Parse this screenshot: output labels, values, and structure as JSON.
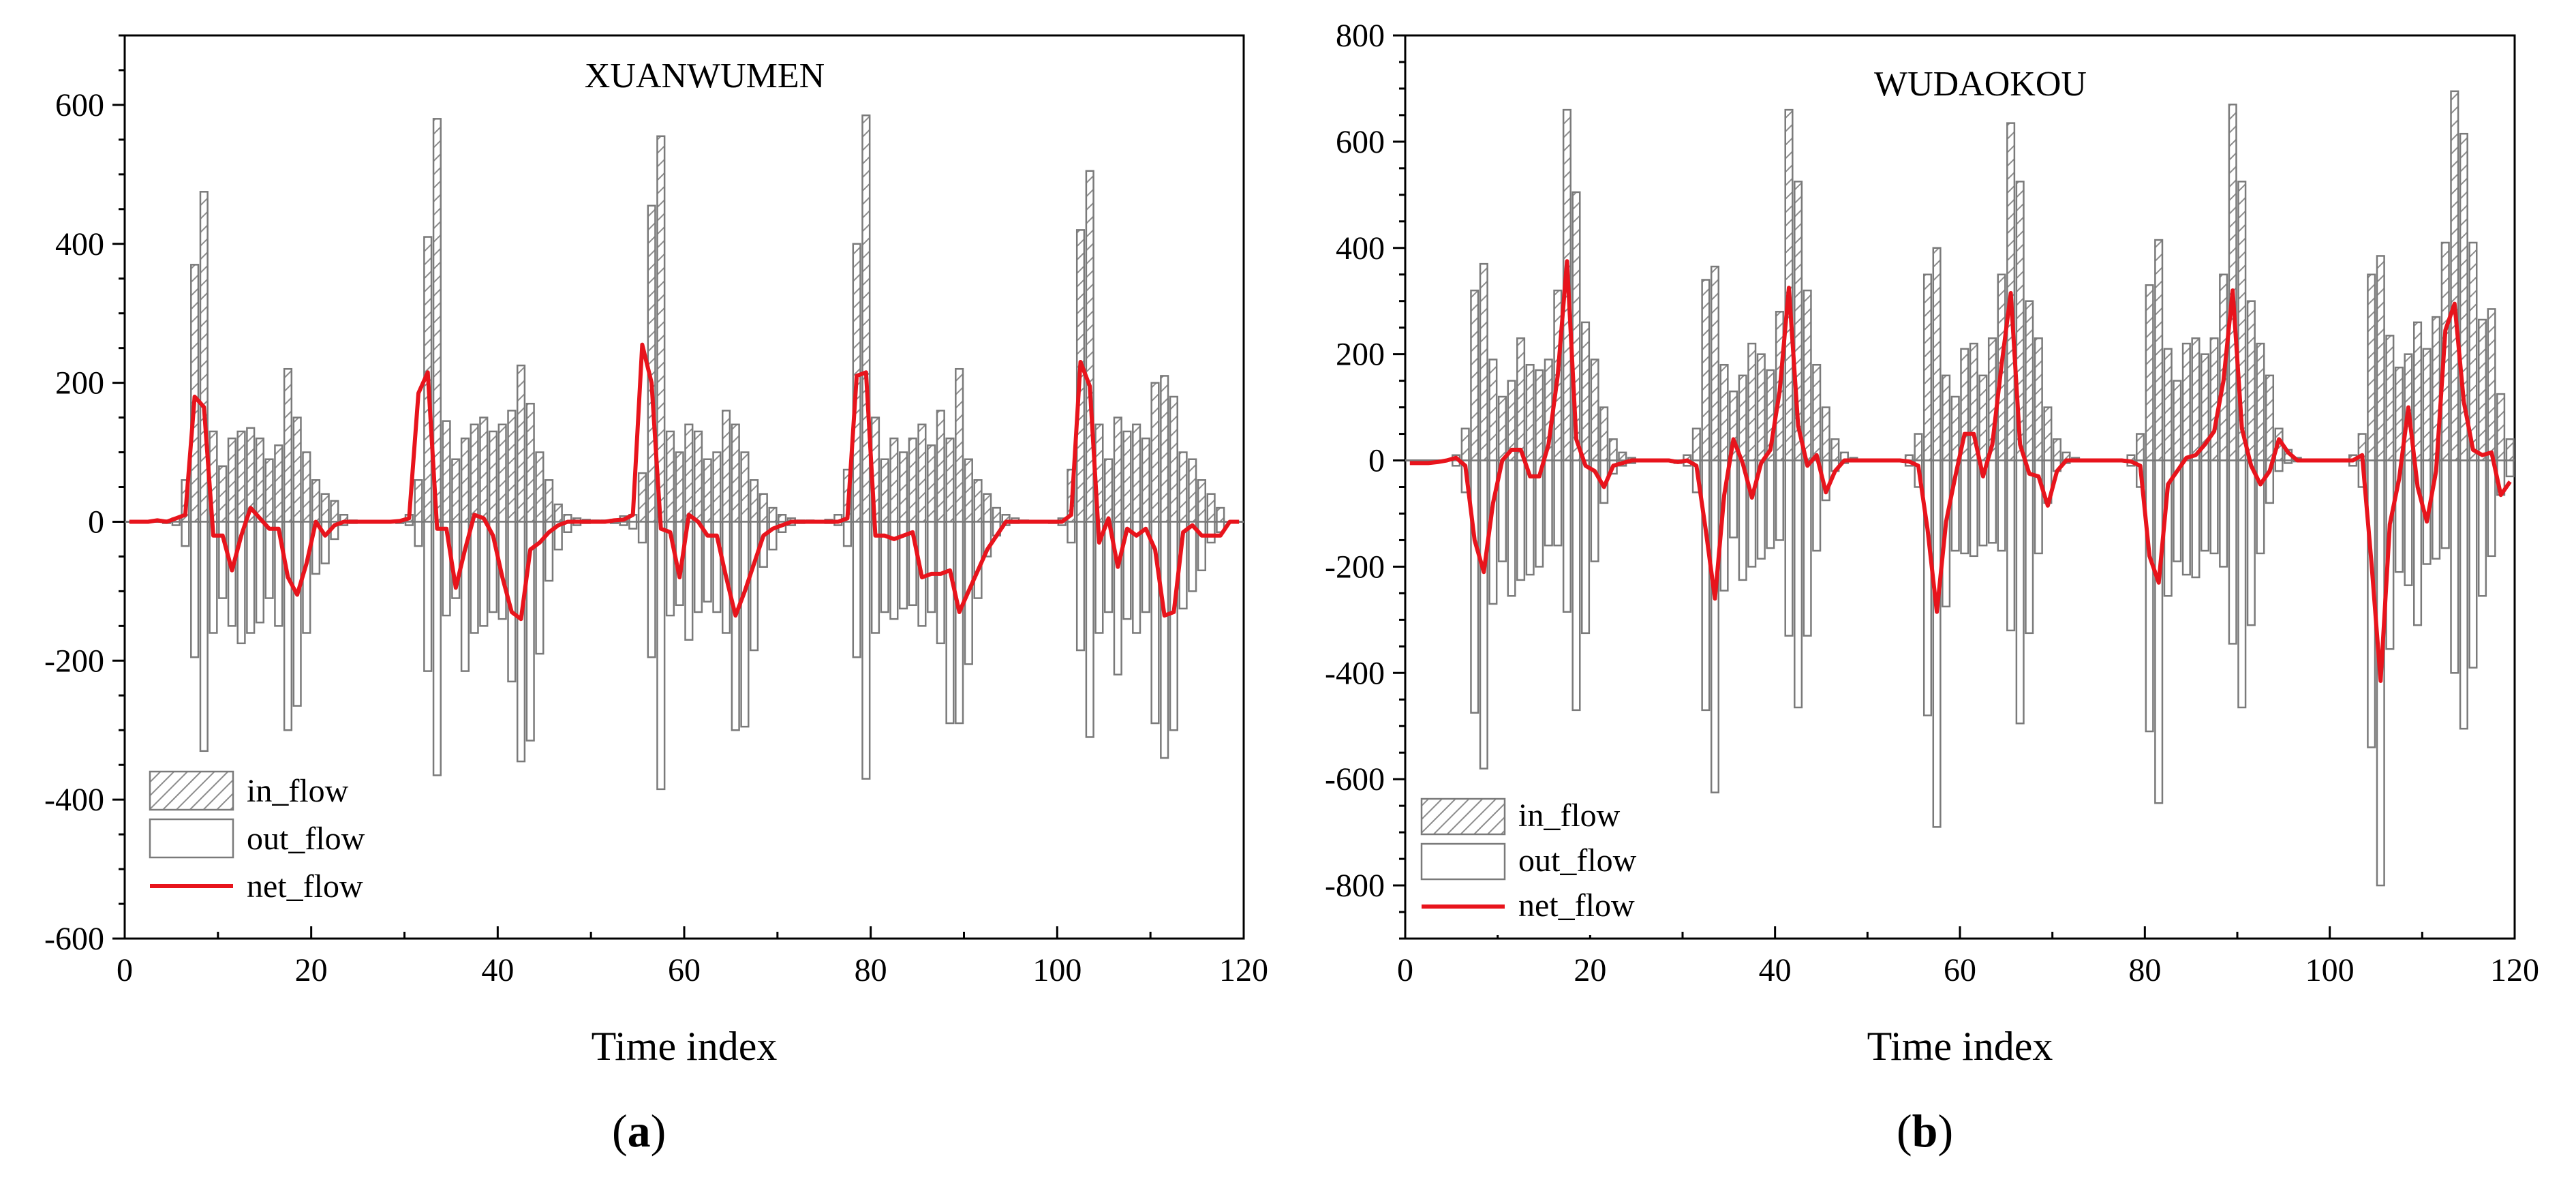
{
  "chart_data": [
    {
      "type": "bar+line",
      "panel_label": "a",
      "title": "XUANWUMEN",
      "xlabel": "Time index",
      "ylabel": "",
      "xlim": [
        0,
        120
      ],
      "ylim": [
        -600,
        700
      ],
      "xticks": [
        0,
        20,
        40,
        60,
        80,
        100,
        120
      ],
      "yticks": [
        -600,
        -400,
        -200,
        0,
        200,
        400,
        600
      ],
      "legend": {
        "position": "bottom-left",
        "entries": [
          "in_flow",
          "out_flow",
          "net_flow"
        ]
      },
      "colors": {
        "in_flow": "#8c8c8c",
        "out_flow": "#8c8c8c",
        "net_flow": "#e8141c"
      },
      "x": [
        0,
        1,
        2,
        3,
        4,
        5,
        6,
        7,
        8,
        9,
        10,
        11,
        12,
        13,
        14,
        15,
        16,
        17,
        18,
        19,
        20,
        21,
        22,
        23,
        24,
        25,
        26,
        27,
        28,
        29,
        30,
        31,
        32,
        33,
        34,
        35,
        36,
        37,
        38,
        39,
        40,
        41,
        42,
        43,
        44,
        45,
        46,
        47,
        48,
        49,
        50,
        51,
        52,
        53,
        54,
        55,
        56,
        57,
        58,
        59,
        60,
        61,
        62,
        63,
        64,
        65,
        66,
        67,
        68,
        69,
        70,
        71,
        72,
        73,
        74,
        75,
        76,
        77,
        78,
        79,
        80,
        81,
        82,
        83,
        84,
        85,
        86,
        87,
        88,
        89,
        90,
        91,
        92,
        93,
        94,
        95,
        96,
        97,
        98,
        99,
        100,
        101,
        102,
        103,
        104,
        105,
        106,
        107,
        108,
        109,
        110,
        111,
        112,
        113,
        114,
        115,
        116,
        117,
        118,
        119
      ],
      "series": [
        {
          "name": "in_flow",
          "values": [
            0,
            0,
            0,
            0,
            2,
            5,
            60,
            370,
            475,
            130,
            80,
            120,
            130,
            135,
            120,
            90,
            110,
            220,
            150,
            100,
            60,
            40,
            30,
            10,
            2,
            0,
            0,
            0,
            0,
            2,
            10,
            60,
            410,
            580,
            145,
            90,
            120,
            140,
            150,
            130,
            140,
            160,
            225,
            170,
            100,
            60,
            25,
            10,
            5,
            3,
            2,
            2,
            3,
            8,
            10,
            70,
            455,
            555,
            130,
            100,
            140,
            130,
            90,
            100,
            160,
            140,
            100,
            60,
            40,
            20,
            10,
            5,
            2,
            2,
            1,
            3,
            10,
            75,
            400,
            585,
            150,
            90,
            120,
            100,
            120,
            140,
            110,
            160,
            120,
            220,
            90,
            60,
            40,
            20,
            10,
            5,
            2,
            1,
            1,
            1,
            5,
            75,
            420,
            505,
            140,
            90,
            150,
            130,
            140,
            120,
            200,
            210,
            180,
            100,
            90,
            60,
            40,
            20,
            0,
            0
          ]
        },
        {
          "name": "out_flow",
          "values": [
            0,
            0,
            0,
            0,
            -2,
            -5,
            -35,
            -195,
            -330,
            -160,
            -110,
            -150,
            -175,
            -160,
            -145,
            -110,
            -150,
            -300,
            -265,
            -160,
            -75,
            -60,
            -25,
            -5,
            -2,
            0,
            0,
            0,
            0,
            -2,
            -5,
            -35,
            -215,
            -365,
            -135,
            -110,
            -215,
            -160,
            -150,
            -130,
            -140,
            -230,
            -345,
            -315,
            -190,
            -85,
            -40,
            -15,
            -5,
            -2,
            -1,
            -1,
            -2,
            -5,
            -10,
            -30,
            -195,
            -385,
            -135,
            -120,
            -170,
            -130,
            -115,
            -130,
            -160,
            -300,
            -295,
            -185,
            -65,
            -40,
            -15,
            -5,
            -2,
            -1,
            -1,
            -2,
            -5,
            -35,
            -195,
            -370,
            -160,
            -130,
            -140,
            -125,
            -120,
            -150,
            -130,
            -175,
            -290,
            -290,
            -205,
            -110,
            -50,
            -20,
            -5,
            -2,
            -1,
            -1,
            -1,
            -2,
            -5,
            -30,
            -185,
            -310,
            -160,
            -130,
            -220,
            -140,
            -160,
            -130,
            -290,
            -340,
            -300,
            -125,
            -100,
            -70,
            -30,
            -15,
            0,
            0
          ]
        },
        {
          "name": "net_flow",
          "values": [
            0,
            0,
            0,
            2,
            0,
            5,
            10,
            180,
            165,
            -20,
            -20,
            -70,
            -20,
            20,
            5,
            -10,
            -10,
            -80,
            -105,
            -60,
            0,
            -20,
            -5,
            0,
            0,
            0,
            0,
            0,
            0,
            1,
            5,
            185,
            215,
            -10,
            -10,
            -95,
            -40,
            10,
            5,
            -20,
            -80,
            -130,
            -140,
            -40,
            -30,
            -15,
            -5,
            0,
            0,
            0,
            0,
            0,
            2,
            3,
            10,
            255,
            200,
            -10,
            -15,
            -80,
            10,
            0,
            -20,
            -20,
            -80,
            -135,
            -100,
            -60,
            -20,
            -10,
            -5,
            0,
            0,
            0,
            0,
            0,
            0,
            5,
            210,
            215,
            -20,
            -20,
            -25,
            -20,
            -15,
            -80,
            -75,
            -75,
            -70,
            -130,
            -100,
            -70,
            -40,
            -20,
            0,
            0,
            0,
            0,
            0,
            0,
            0,
            10,
            230,
            195,
            -30,
            5,
            -65,
            -10,
            -20,
            -10,
            -40,
            -135,
            -130,
            -15,
            -5,
            -20,
            -20,
            -20,
            0,
            0
          ]
        }
      ]
    },
    {
      "type": "bar+line",
      "panel_label": "b",
      "title": "WUDAOKOU",
      "xlabel": "Time index",
      "ylabel": "",
      "xlim": [
        0,
        120
      ],
      "ylim": [
        -900,
        800
      ],
      "xticks": [
        0,
        20,
        40,
        60,
        80,
        100,
        120
      ],
      "yticks": [
        -800,
        -600,
        -400,
        -200,
        0,
        200,
        400,
        600,
        800
      ],
      "legend": {
        "position": "bottom-left",
        "entries": [
          "in_flow",
          "out_flow",
          "net_flow"
        ]
      },
      "colors": {
        "in_flow": "#8c8c8c",
        "out_flow": "#8c8c8c",
        "net_flow": "#e8141c"
      },
      "x": [
        0,
        1,
        2,
        3,
        4,
        5,
        6,
        7,
        8,
        9,
        10,
        11,
        12,
        13,
        14,
        15,
        16,
        17,
        18,
        19,
        20,
        21,
        22,
        23,
        24,
        25,
        26,
        27,
        28,
        29,
        30,
        31,
        32,
        33,
        34,
        35,
        36,
        37,
        38,
        39,
        40,
        41,
        42,
        43,
        44,
        45,
        46,
        47,
        48,
        49,
        50,
        51,
        52,
        53,
        54,
        55,
        56,
        57,
        58,
        59,
        60,
        61,
        62,
        63,
        64,
        65,
        66,
        67,
        68,
        69,
        70,
        71,
        72,
        73,
        74,
        75,
        76,
        77,
        78,
        79,
        80,
        81,
        82,
        83,
        84,
        85,
        86,
        87,
        88,
        89,
        90,
        91,
        92,
        93,
        94,
        95,
        96,
        97,
        98,
        99,
        100,
        101,
        102,
        103,
        104,
        105,
        106,
        107,
        108,
        109,
        110,
        111,
        112,
        113,
        114,
        115,
        116,
        117,
        118,
        119
      ],
      "series": [
        {
          "name": "in_flow",
          "values": [
            0,
            0,
            0,
            0,
            0,
            10,
            60,
            320,
            370,
            190,
            120,
            150,
            230,
            180,
            170,
            190,
            320,
            660,
            505,
            260,
            190,
            100,
            40,
            15,
            5,
            0,
            0,
            0,
            0,
            0,
            10,
            60,
            340,
            365,
            180,
            130,
            160,
            220,
            200,
            170,
            280,
            660,
            525,
            320,
            180,
            100,
            40,
            15,
            5,
            0,
            0,
            0,
            0,
            0,
            10,
            50,
            350,
            400,
            160,
            120,
            210,
            220,
            160,
            230,
            350,
            635,
            525,
            300,
            230,
            100,
            40,
            15,
            5,
            0,
            0,
            0,
            0,
            0,
            10,
            50,
            330,
            415,
            210,
            150,
            220,
            230,
            200,
            230,
            350,
            670,
            525,
            300,
            220,
            160,
            60,
            20,
            5,
            0,
            0,
            0,
            0,
            0,
            10,
            50,
            350,
            385,
            235,
            175,
            200,
            260,
            210,
            270,
            410,
            695,
            615,
            410,
            265,
            285,
            125,
            40
          ]
        },
        {
          "name": "out_flow",
          "values": [
            0,
            0,
            0,
            0,
            0,
            -10,
            -60,
            -475,
            -580,
            -270,
            -190,
            -255,
            -225,
            -215,
            -200,
            -160,
            -160,
            -285,
            -470,
            -325,
            -190,
            -80,
            -25,
            -10,
            -5,
            0,
            0,
            0,
            0,
            -5,
            -10,
            -60,
            -470,
            -625,
            -245,
            -145,
            -225,
            -200,
            -185,
            -165,
            -150,
            -330,
            -465,
            -330,
            -170,
            -75,
            -20,
            -5,
            -2,
            0,
            0,
            0,
            0,
            -2,
            -10,
            -50,
            -480,
            -690,
            -275,
            -170,
            -175,
            -180,
            -160,
            -155,
            -170,
            -320,
            -495,
            -325,
            -175,
            -80,
            -20,
            -5,
            -2,
            0,
            0,
            0,
            0,
            -2,
            -10,
            -50,
            -510,
            -645,
            -255,
            -190,
            -215,
            -220,
            -170,
            -175,
            -200,
            -345,
            -465,
            -310,
            -175,
            -80,
            -20,
            -5,
            -2,
            0,
            0,
            0,
            0,
            -2,
            -10,
            -50,
            -540,
            -800,
            -355,
            -210,
            -235,
            -310,
            -195,
            -185,
            -165,
            -400,
            -505,
            -390,
            -255,
            -180,
            -65,
            -30
          ]
        },
        {
          "name": "net_flow",
          "values": [
            -5,
            -5,
            -5,
            -3,
            0,
            5,
            -10,
            -150,
            -210,
            -80,
            0,
            20,
            20,
            -30,
            -30,
            30,
            160,
            375,
            40,
            -10,
            -20,
            -50,
            -10,
            -5,
            0,
            0,
            0,
            0,
            0,
            -3,
            0,
            -10,
            -130,
            -260,
            -65,
            40,
            -5,
            -70,
            -5,
            20,
            130,
            325,
            65,
            -10,
            10,
            -60,
            -20,
            0,
            0,
            0,
            0,
            0,
            0,
            0,
            -2,
            -10,
            -130,
            -285,
            -115,
            -30,
            50,
            50,
            -30,
            30,
            180,
            315,
            30,
            -25,
            -30,
            -85,
            -20,
            0,
            0,
            0,
            0,
            0,
            0,
            0,
            -2,
            -10,
            -180,
            -230,
            -45,
            -20,
            5,
            10,
            30,
            55,
            150,
            320,
            60,
            -10,
            -45,
            -20,
            40,
            15,
            0,
            0,
            0,
            0,
            0,
            0,
            0,
            10,
            -190,
            -415,
            -120,
            -35,
            100,
            -50,
            -115,
            -20,
            245,
            295,
            110,
            20,
            10,
            15,
            -65,
            -40
          ]
        }
      ]
    }
  ]
}
